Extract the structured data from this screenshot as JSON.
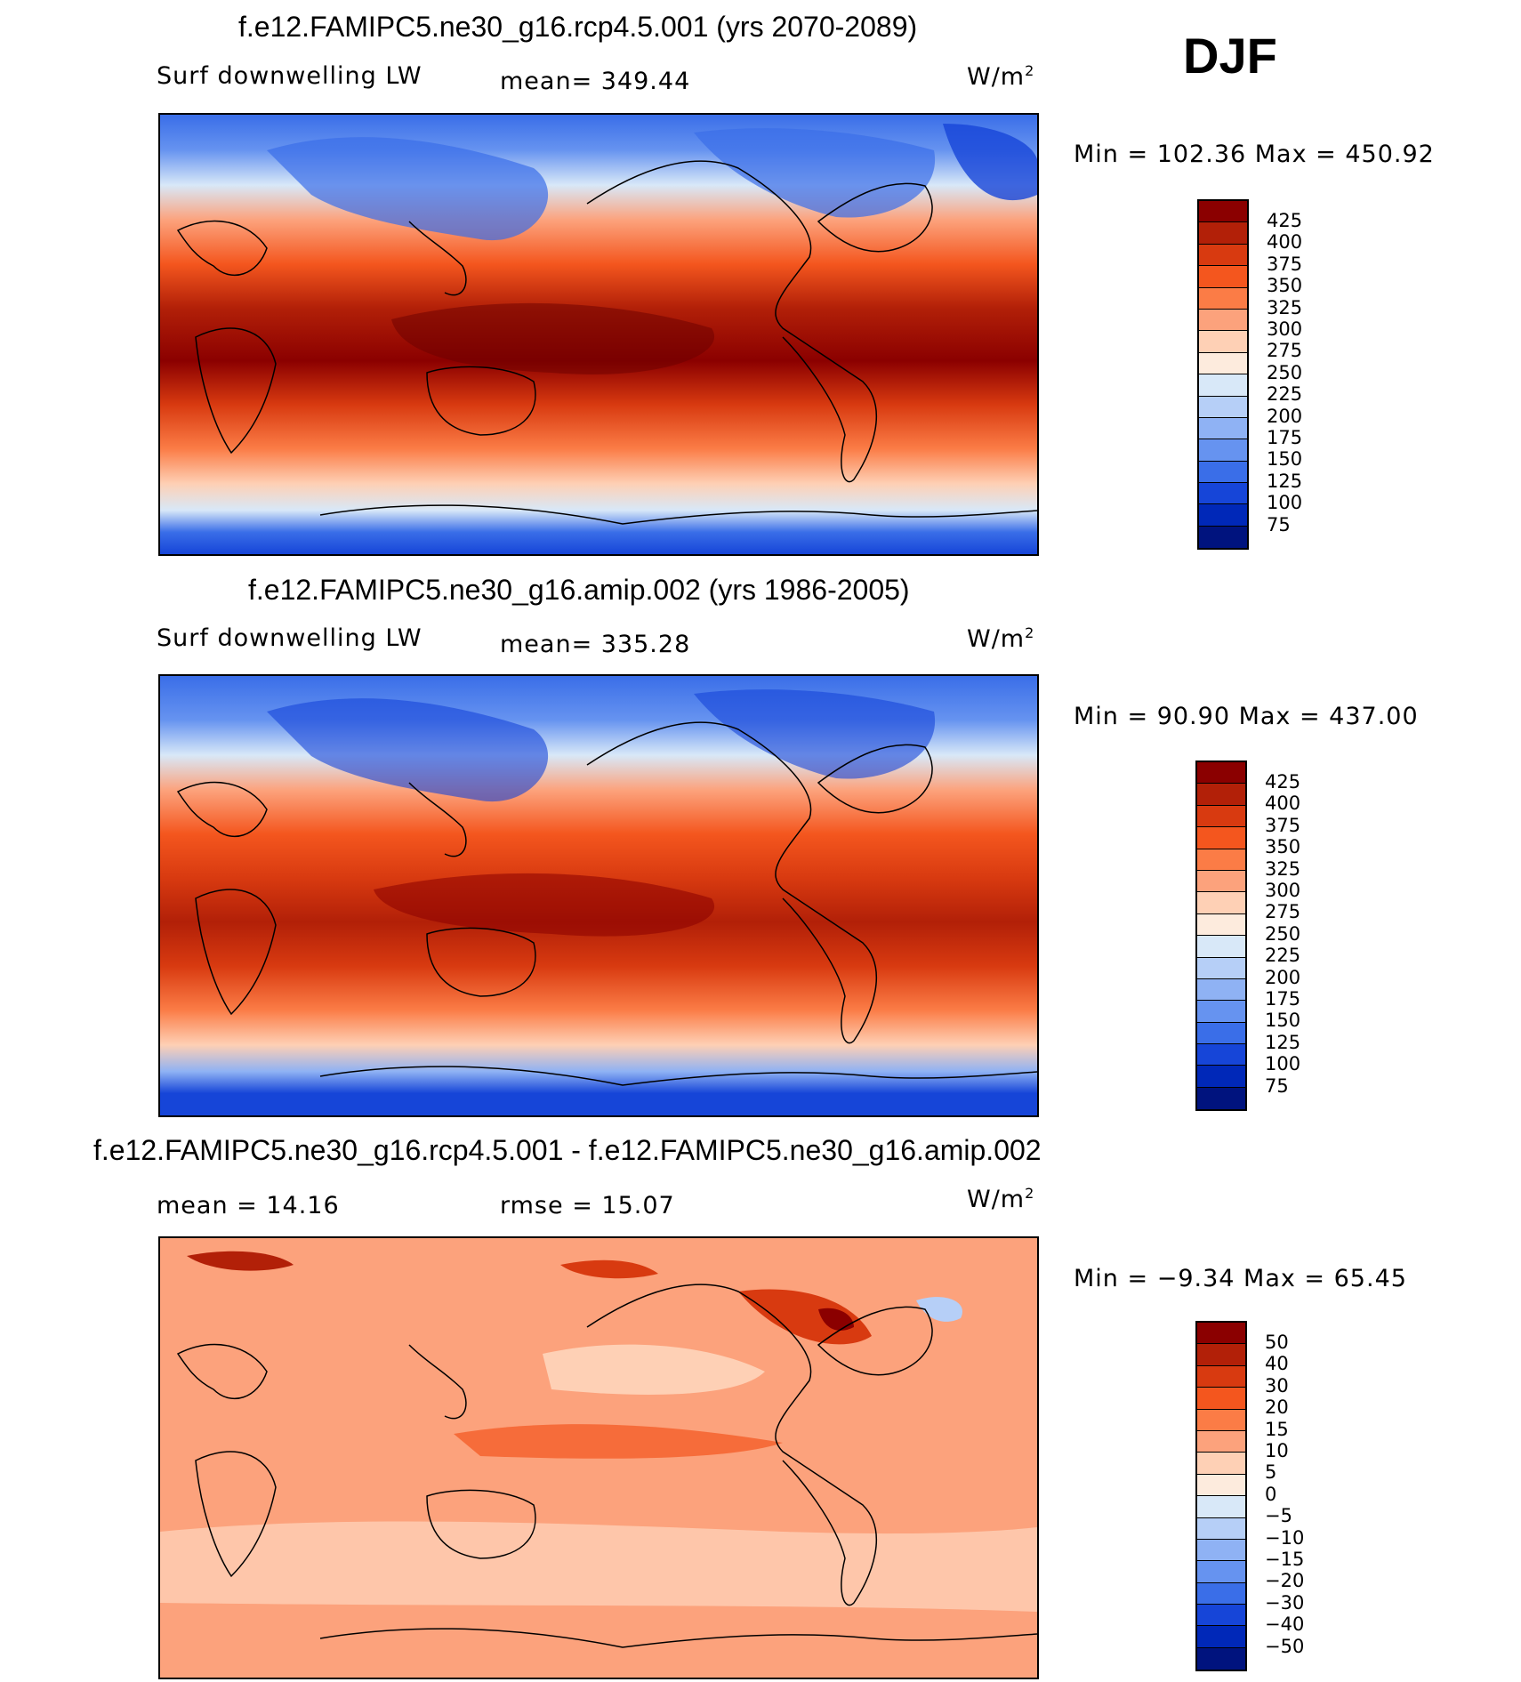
{
  "season": "DJF",
  "unit_base": "W/m",
  "unit_exp": "2",
  "chart_data": [
    {
      "type": "heatmap",
      "title": "f.e12.FAMIPC5.ne30_g16.rcp4.5.001 (yrs 2070-2089)",
      "variable": "Surf downwelling LW",
      "mean_text": "mean= 349.44",
      "minmax_text": "Min  =  102.36  Max  =  450.92",
      "min": 102.36,
      "max": 450.92,
      "mean": 349.44,
      "levels": [
        "425",
        "400",
        "375",
        "350",
        "325",
        "300",
        "275",
        "250",
        "225",
        "200",
        "175",
        "150",
        "125",
        "100",
        "75"
      ],
      "colors": [
        "#8b0000",
        "#b22008",
        "#d83a10",
        "#f4561e",
        "#fb7c46",
        "#fca27c",
        "#fed0b5",
        "#fdebdd",
        "#d8e8f8",
        "#b6cff7",
        "#8fb2f4",
        "#6693f0",
        "#3a6ee8",
        "#1645d8",
        "#0028b8",
        "#00137e"
      ]
    },
    {
      "type": "heatmap",
      "title": "f.e12.FAMIPC5.ne30_g16.amip.002 (yrs 1986-2005)",
      "variable": "Surf downwelling LW",
      "mean_text": "mean= 335.28",
      "minmax_text": "Min  =   90.90  Max  =  437.00",
      "min": 90.9,
      "max": 437.0,
      "mean": 335.28,
      "levels": [
        "425",
        "400",
        "375",
        "350",
        "325",
        "300",
        "275",
        "250",
        "225",
        "200",
        "175",
        "150",
        "125",
        "100",
        "75"
      ],
      "colors": [
        "#8b0000",
        "#b22008",
        "#d83a10",
        "#f4561e",
        "#fb7c46",
        "#fca27c",
        "#fed0b5",
        "#fdebdd",
        "#d8e8f8",
        "#b6cff7",
        "#8fb2f4",
        "#6693f0",
        "#3a6ee8",
        "#1645d8",
        "#0028b8",
        "#00137e"
      ]
    },
    {
      "type": "heatmap",
      "title": "f.e12.FAMIPC5.ne30_g16.rcp4.5.001 - f.e12.FAMIPC5.ne30_g16.amip.002",
      "mean_text": "mean  =    14.16",
      "rmse_text": "rmse  =    15.07",
      "minmax_text": "Min  =   −9.34  Max  =    65.45",
      "min": -9.34,
      "max": 65.45,
      "mean": 14.16,
      "rmse": 15.07,
      "levels": [
        "50",
        "40",
        "30",
        "20",
        "15",
        "10",
        "5",
        "0",
        "−5",
        "−10",
        "−15",
        "−20",
        "−30",
        "−40",
        "−50"
      ],
      "colors": [
        "#8b0000",
        "#b22008",
        "#d83a10",
        "#f4561e",
        "#fb7c46",
        "#fca27c",
        "#fed0b5",
        "#fdebdd",
        "#d8e8f8",
        "#b6cff7",
        "#8fb2f4",
        "#6693f0",
        "#3a6ee8",
        "#1645d8",
        "#0028b8",
        "#00137e"
      ]
    }
  ]
}
